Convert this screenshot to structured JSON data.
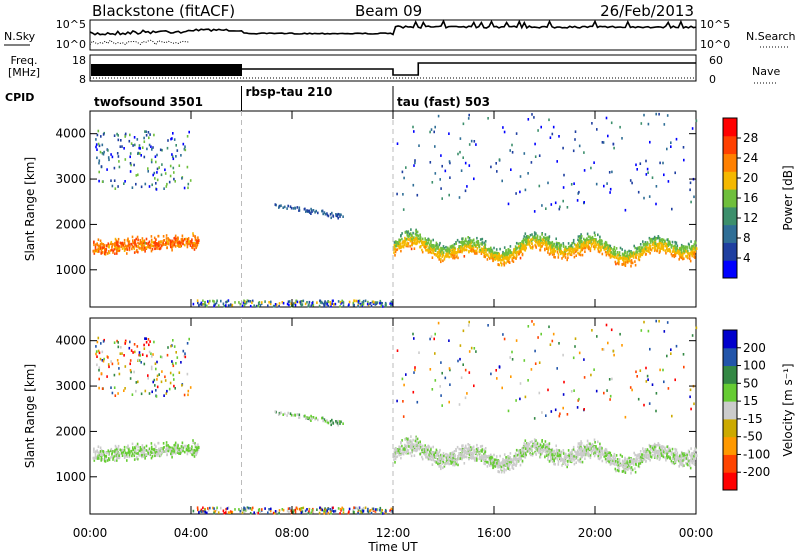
{
  "header": {
    "title": "Blackstone (fitACF)",
    "beam": "Beam 09",
    "date": "26/Feb/2013"
  },
  "status_panels": {
    "nsky_label": "N.Sky",
    "nsearch_label": "N.Search",
    "noise_ticks": [
      "10^5",
      "10^0"
    ],
    "freq_label": "Freq.",
    "freq_unit": "[MHz]",
    "freq_ticks": [
      "18",
      "8"
    ],
    "nave_label": "Nave",
    "nave_ticks": [
      "60",
      "0"
    ],
    "cpid_label": "CPID",
    "programs": [
      {
        "name": "twofsound 3501",
        "start_hour": 0,
        "end_hour": 6
      },
      {
        "name": "rbsp-tau 210",
        "start_hour": 6,
        "end_hour": 12
      },
      {
        "name": "tau (fast) 503",
        "start_hour": 12,
        "end_hour": 24
      }
    ]
  },
  "colors": {
    "power_scale": [
      "#0000ff",
      "#1f3fa0",
      "#2f6e96",
      "#3c8f6c",
      "#6fbf3c",
      "#f5b800",
      "#ff8000",
      "#ff4000",
      "#ff0000"
    ],
    "velocity_scale": [
      "#0000cc",
      "#2255aa",
      "#338844",
      "#66cc33",
      "#cccccc",
      "#ccaa00",
      "#ff9900",
      "#ff4400",
      "#ff0000"
    ],
    "ground_scatter": "#aaaaaa"
  },
  "chart_data": [
    {
      "type": "heatmap",
      "panel": "power",
      "x_range_hours": [
        0,
        24
      ],
      "ylabel": "Slant Range [km]",
      "ylim": [
        180,
        4500
      ],
      "y_ticks": [
        1000,
        2000,
        3000,
        4000
      ],
      "colorbar_label": "Power [dB]",
      "colorbar_ticks": [
        4,
        8,
        12,
        16,
        20,
        24,
        28
      ],
      "colorbar_range": [
        0,
        30
      ]
    },
    {
      "type": "heatmap",
      "panel": "velocity",
      "x_range_hours": [
        0,
        24
      ],
      "ylabel": "Slant Range [km]",
      "ylim": [
        180,
        4500
      ],
      "y_ticks": [
        1000,
        2000,
        3000,
        4000
      ],
      "colorbar_label": "Velocity [m s⁻¹]",
      "colorbar_ticks": [
        200,
        100,
        50,
        15,
        -15,
        -50,
        -100,
        -200
      ]
    }
  ],
  "x_axis": {
    "label": "Time UT",
    "ticks": [
      "00:00",
      "04:00",
      "08:00",
      "12:00",
      "16:00",
      "20:00",
      "00:00"
    ]
  }
}
